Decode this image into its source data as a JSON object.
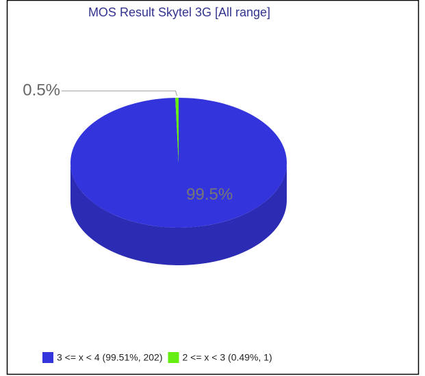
{
  "chart_data": {
    "type": "pie",
    "title": "MOS Result Skytel 3G  [All range]",
    "categories": [
      "3 <= x < 4 (99.51%, 202)",
      "2 <= x < 3 (0.49%, 1)"
    ],
    "values": [
      99.51,
      0.49
    ],
    "value_labels": [
      "99.5%",
      "0.5%"
    ],
    "colors": [
      "#3434dc",
      "#66ee11"
    ],
    "legend": "bottom"
  }
}
